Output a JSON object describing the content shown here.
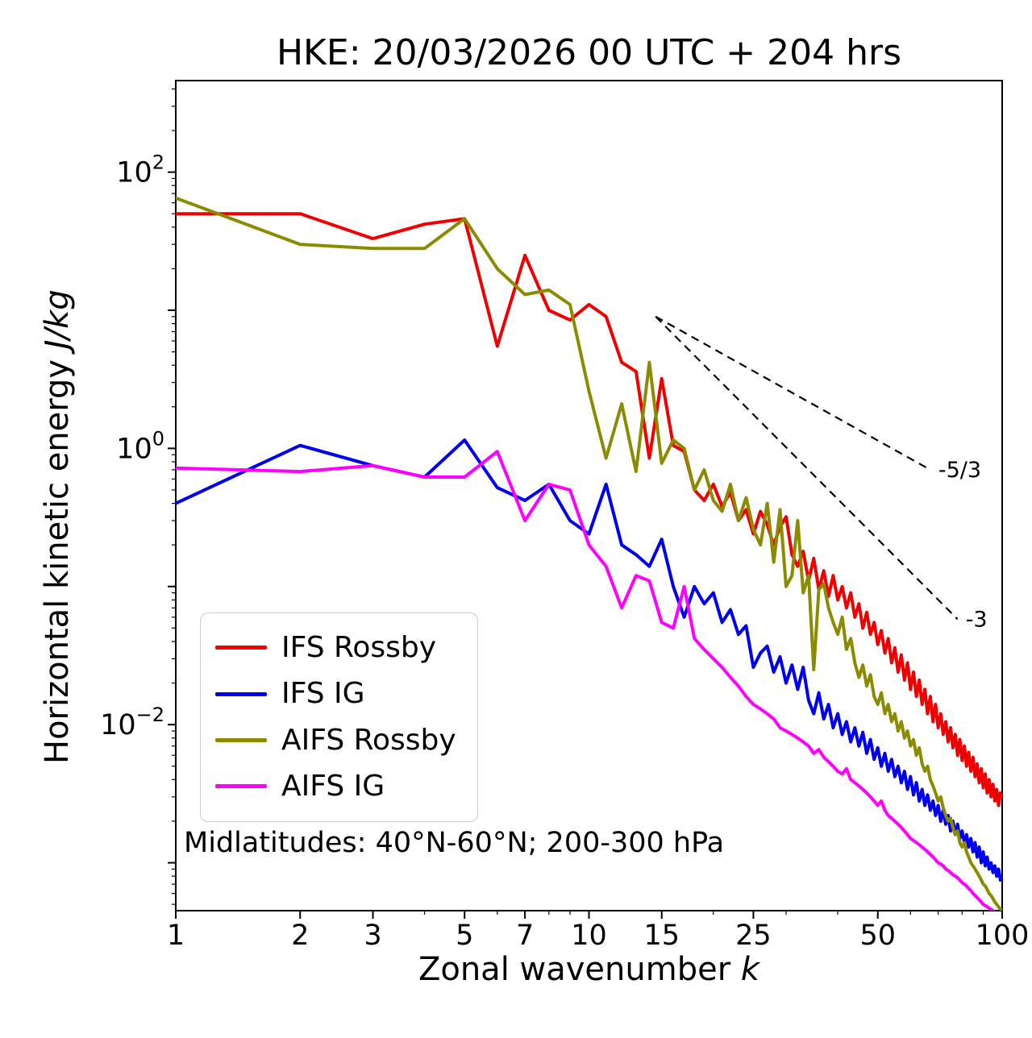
{
  "title": "HKE: 20/03/2026 00 UTC + 204 hrs",
  "annotation": "Midlatitudes: 40°N-60°N; 200-300 hPa",
  "xlabel": {
    "text": "Zonal wavenumber ",
    "math": "k"
  },
  "ylabel": {
    "text": "Horizontal kinetic energy ",
    "math": "J/kg"
  },
  "chart_data": {
    "type": "line",
    "title": "HKE: 20/03/2026 00 UTC + 204 hrs",
    "xlabel": "Zonal wavenumber k",
    "ylabel": "Horizontal kinetic energy J/kg",
    "x_scale": "log",
    "y_scale": "log",
    "xlim": [
      1,
      100
    ],
    "ylim": [
      0.00045,
      460.0
    ],
    "grid": false,
    "legend_position": "lower left",
    "x_ticks": [
      1,
      2,
      3,
      5,
      7,
      10,
      15,
      25,
      50,
      100
    ],
    "x_minor_ticks": [
      2,
      3,
      4,
      5,
      6,
      7,
      8,
      9,
      20,
      30,
      40,
      50,
      60,
      70,
      80,
      90
    ],
    "y_tick_exponents": [
      2,
      0,
      -2
    ],
    "y_major_exponents": [
      2,
      1,
      0,
      -1,
      -2,
      -3
    ],
    "x": [
      1,
      2,
      3,
      4,
      5,
      6,
      7,
      8,
      9,
      10,
      11,
      12,
      13,
      14,
      15,
      16,
      17,
      18,
      19,
      20,
      21,
      22,
      23,
      24,
      25,
      26,
      27,
      28,
      29,
      30,
      31,
      32,
      33,
      34,
      35,
      36,
      37,
      38,
      39,
      40,
      41,
      42,
      43,
      44,
      45,
      46,
      47,
      48,
      49,
      50,
      51,
      52,
      53,
      54,
      55,
      56,
      57,
      58,
      59,
      60,
      61,
      62,
      63,
      64,
      65,
      66,
      67,
      68,
      69,
      70,
      71,
      72,
      73,
      74,
      75,
      76,
      77,
      78,
      79,
      80,
      81,
      82,
      83,
      84,
      85,
      86,
      87,
      88,
      89,
      90,
      91,
      92,
      93,
      94,
      95,
      96,
      97,
      98,
      99,
      100
    ],
    "series": [
      {
        "name": "IFS Rossby",
        "color": "#f00000",
        "values": [
          50,
          50,
          33,
          42,
          46,
          5.5,
          25,
          10,
          8.5,
          11,
          9,
          4.2,
          3.6,
          0.85,
          3.2,
          1.05,
          0.95,
          0.5,
          0.42,
          0.55,
          0.38,
          0.48,
          0.3,
          0.36,
          0.24,
          0.35,
          0.28,
          0.2,
          0.27,
          0.32,
          0.17,
          0.14,
          0.18,
          0.11,
          0.16,
          0.095,
          0.13,
          0.085,
          0.12,
          0.08,
          0.1,
          0.07,
          0.09,
          0.06,
          0.075,
          0.05,
          0.065,
          0.045,
          0.055,
          0.038,
          0.048,
          0.033,
          0.042,
          0.028,
          0.036,
          0.024,
          0.032,
          0.021,
          0.028,
          0.018,
          0.024,
          0.016,
          0.021,
          0.014,
          0.018,
          0.012,
          0.016,
          0.0105,
          0.014,
          0.0095,
          0.012,
          0.0085,
          0.0105,
          0.0075,
          0.0095,
          0.0068,
          0.0085,
          0.006,
          0.0078,
          0.0055,
          0.007,
          0.005,
          0.0063,
          0.0046,
          0.0058,
          0.0042,
          0.0052,
          0.0038,
          0.0048,
          0.0035,
          0.0044,
          0.0032,
          0.004,
          0.003,
          0.0037,
          0.0028,
          0.0034,
          0.0026,
          0.0032,
          0.003
        ]
      },
      {
        "name": "IFS IG",
        "color": "#0000ee",
        "values": [
          0.4,
          1.05,
          0.75,
          0.62,
          1.15,
          0.52,
          0.42,
          0.55,
          0.3,
          0.24,
          0.55,
          0.2,
          0.17,
          0.14,
          0.22,
          0.1,
          0.06,
          0.1,
          0.075,
          0.09,
          0.055,
          0.068,
          0.045,
          0.052,
          0.026,
          0.033,
          0.037,
          0.024,
          0.031,
          0.02,
          0.027,
          0.018,
          0.026,
          0.015,
          0.012,
          0.017,
          0.011,
          0.014,
          0.0095,
          0.012,
          0.0085,
          0.0105,
          0.0075,
          0.0095,
          0.007,
          0.0088,
          0.0062,
          0.0078,
          0.0056,
          0.0068,
          0.005,
          0.0062,
          0.0046,
          0.0056,
          0.0042,
          0.005,
          0.0038,
          0.0046,
          0.0034,
          0.0042,
          0.0031,
          0.0038,
          0.0028,
          0.0034,
          0.0026,
          0.0031,
          0.0024,
          0.0028,
          0.0022,
          0.0026,
          0.002,
          0.0024,
          0.0019,
          0.0022,
          0.0017,
          0.002,
          0.0016,
          0.0019,
          0.0015,
          0.0017,
          0.0014,
          0.0016,
          0.0013,
          0.0015,
          0.0012,
          0.0014,
          0.0011,
          0.0013,
          0.001,
          0.0012,
          0.00095,
          0.0011,
          0.0009,
          0.001,
          0.00085,
          0.00095,
          0.0008,
          0.0009,
          0.00075,
          0.0008
        ]
      },
      {
        "name": "AIFS Rossby",
        "color": "#8b8b00",
        "values": [
          65,
          30,
          28,
          28,
          46,
          20,
          13,
          14,
          11,
          2.6,
          0.85,
          2.1,
          0.68,
          4.2,
          0.78,
          1.15,
          1.0,
          0.5,
          0.7,
          0.42,
          0.35,
          0.55,
          0.3,
          0.44,
          0.26,
          0.2,
          0.4,
          0.15,
          0.36,
          0.1,
          0.12,
          0.3,
          0.09,
          0.12,
          0.025,
          0.095,
          0.105,
          0.07,
          0.055,
          0.045,
          0.06,
          0.035,
          0.042,
          0.028,
          0.022,
          0.027,
          0.019,
          0.023,
          0.016,
          0.014,
          0.017,
          0.012,
          0.014,
          0.0105,
          0.012,
          0.009,
          0.0105,
          0.008,
          0.009,
          0.007,
          0.0078,
          0.006,
          0.0068,
          0.0052,
          0.0046,
          0.005,
          0.004,
          0.0036,
          0.0032,
          0.0028,
          0.003,
          0.0025,
          0.0022,
          0.002,
          0.0021,
          0.0018,
          0.0016,
          0.0017,
          0.0014,
          0.0013,
          0.0014,
          0.0012,
          0.0011,
          0.001,
          0.00095,
          0.0009,
          0.00085,
          0.0008,
          0.00075,
          0.0007,
          0.00068,
          0.00064,
          0.0006,
          0.00058,
          0.00055,
          0.00052,
          0.0005,
          0.00048,
          0.00046,
          0.00045
        ]
      },
      {
        "name": "AIFS IG",
        "color": "#ff00ff",
        "values": [
          0.72,
          0.68,
          0.75,
          0.62,
          0.62,
          0.95,
          0.3,
          0.55,
          0.5,
          0.2,
          0.14,
          0.07,
          0.12,
          0.11,
          0.055,
          0.05,
          0.1,
          0.042,
          0.035,
          0.03,
          0.026,
          0.022,
          0.019,
          0.016,
          0.014,
          0.013,
          0.012,
          0.011,
          0.0095,
          0.009,
          0.0085,
          0.008,
          0.0075,
          0.007,
          0.0062,
          0.0066,
          0.0058,
          0.0054,
          0.005,
          0.0046,
          0.0044,
          0.0048,
          0.004,
          0.0038,
          0.0036,
          0.0034,
          0.0032,
          0.003,
          0.0028,
          0.0026,
          0.0028,
          0.0024,
          0.0022,
          0.0021,
          0.002,
          0.0019,
          0.0018,
          0.0017,
          0.0016,
          0.0015,
          0.00145,
          0.0014,
          0.00135,
          0.0013,
          0.00125,
          0.0012,
          0.00115,
          0.0011,
          0.00105,
          0.001,
          0.00098,
          0.00095,
          0.0009,
          0.00088,
          0.00085,
          0.00082,
          0.0008,
          0.00078,
          0.00075,
          0.00072,
          0.0007,
          0.00068,
          0.00065,
          0.00063,
          0.0006,
          0.00058,
          0.00056,
          0.00054,
          0.00052,
          0.0005,
          0.00049,
          0.00048,
          0.00047,
          0.00046,
          0.00045,
          0.00044,
          0.00043,
          0.00042,
          0.00041,
          0.0004
        ]
      }
    ],
    "reference_lines": [
      {
        "label": "-5/3",
        "slope": "-5/3",
        "x": [
          14.5,
          67
        ],
        "y": [
          9.0,
          0.7
        ]
      },
      {
        "label": "-3",
        "slope": "-3",
        "x": [
          14.5,
          78
        ],
        "y": [
          9.0,
          0.058
        ]
      }
    ]
  }
}
